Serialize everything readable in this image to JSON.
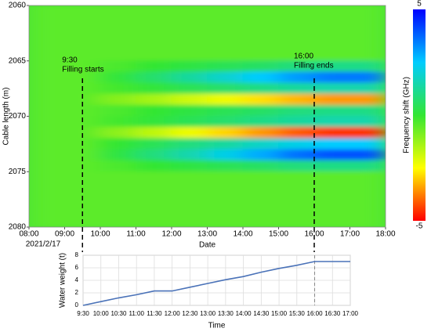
{
  "chart_data": [
    {
      "type": "heatmap",
      "xlabel": "Date",
      "ylabel": "Cable length (m)",
      "colorbar_label": "Frequency shift (GHz)",
      "date_label": "2021/2/17",
      "xlim": [
        8,
        18
      ],
      "xticks": [
        {
          "value": 8,
          "label": "08:00"
        },
        {
          "value": 9,
          "label": "09:00"
        },
        {
          "value": 10,
          "label": "10:00"
        },
        {
          "value": 11,
          "label": "11:00"
        },
        {
          "value": 12,
          "label": "12:00"
        },
        {
          "value": 13,
          "label": "13:00"
        },
        {
          "value": 14,
          "label": "14:00"
        },
        {
          "value": 15,
          "label": "15:00"
        },
        {
          "value": 16,
          "label": "16:00"
        },
        {
          "value": 17,
          "label": "17:00"
        },
        {
          "value": 18,
          "label": "18:00"
        }
      ],
      "ylim": [
        2060,
        2080
      ],
      "y_inverted": true,
      "yticks": [
        2060,
        2065,
        2070,
        2075,
        2080
      ],
      "zlim": [
        -5,
        5
      ],
      "zticks": [
        5,
        -5
      ],
      "colorscale": [
        "#ff0000",
        "#ffff00",
        "#33e633",
        "#00ccff",
        "#0000ff"
      ],
      "annotations": [
        {
          "x": 9.5,
          "time": "9:30",
          "text": "Filling starts"
        },
        {
          "x": 16,
          "time": "16:00",
          "text": "Filling ends"
        }
      ],
      "x": [
        8.5,
        9.5,
        10.5,
        11.5,
        12.5,
        13.5,
        14.5,
        15.5,
        16.5,
        17.5
      ],
      "y": [
        2060.5,
        2061.5,
        2062.5,
        2063.5,
        2064.5,
        2065.5,
        2066.5,
        2067.5,
        2068.5,
        2069.5,
        2070.5,
        2071.5,
        2072.5,
        2073.5,
        2074.5,
        2075.5,
        2076.5,
        2077.5,
        2078.5,
        2079.5
      ],
      "z": [
        [
          -0.5,
          -0.5,
          -0.5,
          -0.5,
          -0.5,
          -0.5,
          -0.5,
          -0.5,
          -0.5,
          -0.5
        ],
        [
          -0.5,
          -0.5,
          -0.5,
          -0.5,
          -0.5,
          -0.5,
          -0.5,
          -0.5,
          -0.5,
          -0.5
        ],
        [
          -0.5,
          -0.5,
          -0.5,
          -0.5,
          -0.5,
          -0.5,
          -0.5,
          -0.5,
          -0.5,
          -0.5
        ],
        [
          -0.5,
          -0.5,
          -0.5,
          -0.5,
          -0.5,
          -0.5,
          -0.5,
          -0.5,
          -0.5,
          -0.5
        ],
        [
          -0.5,
          -0.5,
          -0.5,
          -0.5,
          -0.5,
          -0.5,
          -0.5,
          -0.5,
          -0.5,
          -0.5
        ],
        [
          -0.5,
          -0.5,
          -0.3,
          0,
          0.2,
          0.4,
          0.6,
          0.9,
          1,
          1
        ],
        [
          -0.5,
          -0.5,
          0.1,
          0.7,
          1.3,
          1.9,
          2.5,
          3.1,
          3.5,
          3.5
        ],
        [
          -0.5,
          -0.5,
          -0.2,
          0.1,
          0.4,
          0.7,
          1,
          1.3,
          1.5,
          1.5
        ],
        [
          -0.5,
          -0.5,
          -1,
          -1.4,
          -1.9,
          -2.3,
          -2.8,
          -3.2,
          -3.5,
          -3.5
        ],
        [
          -0.5,
          -0.5,
          -0.3,
          0,
          0.2,
          0.4,
          0.6,
          0.9,
          1,
          1
        ],
        [
          -0.5,
          -0.5,
          -0.2,
          0.1,
          0.4,
          0.7,
          1,
          1.3,
          1.5,
          1.5
        ],
        [
          -0.5,
          -0.5,
          -1.1,
          -1.7,
          -2.3,
          -2.9,
          -3.5,
          -4.1,
          -4.5,
          -4.5
        ],
        [
          -0.5,
          -0.5,
          0,
          0.4,
          0.9,
          1.3,
          1.8,
          2.2,
          2.5,
          2.5
        ],
        [
          -0.5,
          -0.5,
          0.2,
          0.9,
          1.5,
          2.2,
          2.9,
          3.6,
          4,
          4
        ],
        [
          -0.5,
          -0.5,
          -0.3,
          0,
          0.2,
          0.4,
          0.6,
          0.9,
          1,
          1
        ],
        [
          -0.5,
          -0.5,
          -0.5,
          -0.5,
          -0.5,
          -0.5,
          -0.5,
          -0.5,
          -0.5,
          -0.5
        ],
        [
          -0.5,
          -0.5,
          -0.5,
          -0.5,
          -0.5,
          -0.5,
          -0.5,
          -0.5,
          -0.5,
          -0.5
        ],
        [
          -0.5,
          -0.5,
          -0.5,
          -0.5,
          -0.5,
          -0.5,
          -0.5,
          -0.5,
          -0.5,
          -0.5
        ],
        [
          -0.5,
          -0.5,
          -0.5,
          -0.5,
          -0.5,
          -0.5,
          -0.5,
          -0.5,
          -0.5,
          -0.5
        ],
        [
          -0.5,
          -0.5,
          -0.5,
          -0.5,
          -0.5,
          -0.5,
          -0.5,
          -0.5,
          -0.5,
          -0.5
        ]
      ]
    },
    {
      "type": "line",
      "xlabel": "Time",
      "ylabel": "Water weight (t)",
      "categories": [
        "9:30",
        "10:00",
        "10:30",
        "11:00",
        "11:30",
        "12:00",
        "12:30",
        "13:00",
        "13:30",
        "14:00",
        "14:30",
        "15:00",
        "15:30",
        "16:00",
        "16:30",
        "17:00"
      ],
      "values": [
        0,
        0.6,
        1.2,
        1.7,
        2.3,
        2.3,
        2.9,
        3.5,
        4.1,
        4.6,
        5.3,
        5.9,
        6.4,
        7.0,
        7.0,
        7.0
      ],
      "color": "#4a72b8",
      "marker_category": 13,
      "ylim": [
        0,
        8
      ],
      "yticks": [
        0,
        2,
        4,
        6,
        8
      ],
      "grid": true
    }
  ]
}
